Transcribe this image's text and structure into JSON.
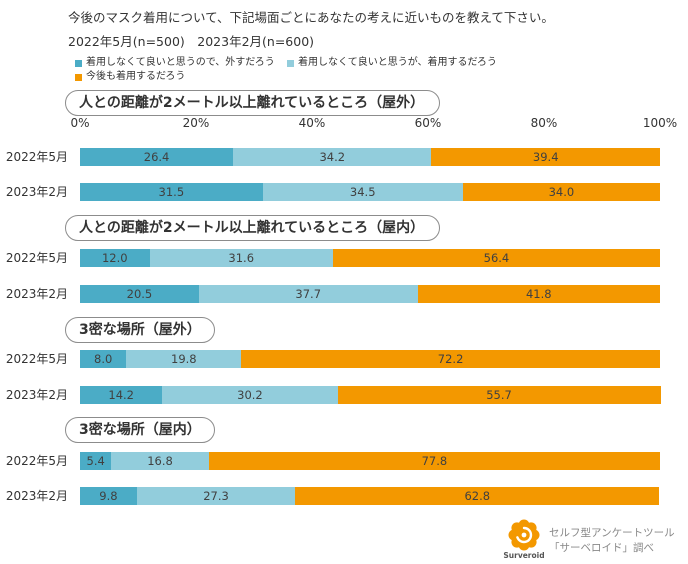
{
  "chart_data": {
    "type": "bar",
    "orientation": "horizontal",
    "stacked": true,
    "title": "今後のマスク着用について、下記場面ごとにあなたの考えに近いものを教えて下さい。",
    "subtitle": "2022年5月(n=500)　2023年2月(n=600)",
    "unit": "%",
    "xlim": [
      0,
      100
    ],
    "xticks": [
      0,
      20,
      40,
      60,
      80,
      100
    ],
    "xtick_labels": [
      "0%",
      "20%",
      "40%",
      "60%",
      "80%",
      "100%"
    ],
    "grid": false,
    "legend_position": "top-left",
    "series": [
      {
        "name": "着用しなくて良いと思うので、外すだろう",
        "color": "#4bacc6"
      },
      {
        "name": "着用しなくて良いと思うが、着用するだろう",
        "color": "#92cddc"
      },
      {
        "name": "今後も着用するだろう",
        "color": "#f39800"
      }
    ],
    "groups": [
      {
        "title": "人との距離が2メートル以上離れているところ（屋外）",
        "rows": [
          {
            "label": "2022年5月",
            "values": [
              26.4,
              34.2,
              39.4
            ]
          },
          {
            "label": "2023年2月",
            "values": [
              31.5,
              34.5,
              34.0
            ]
          }
        ]
      },
      {
        "title": "人との距離が2メートル以上離れているところ（屋内）",
        "rows": [
          {
            "label": "2022年5月",
            "values": [
              12.0,
              31.6,
              56.4
            ]
          },
          {
            "label": "2023年2月",
            "values": [
              20.5,
              37.7,
              41.8
            ]
          }
        ]
      },
      {
        "title": "3密な場所（屋外）",
        "rows": [
          {
            "label": "2022年5月",
            "values": [
              8.0,
              19.8,
              72.2
            ]
          },
          {
            "label": "2023年2月",
            "values": [
              14.2,
              30.2,
              55.7
            ]
          }
        ]
      },
      {
        "title": "3密な場所（屋内）",
        "rows": [
          {
            "label": "2022年5月",
            "values": [
              5.4,
              16.8,
              77.8
            ]
          },
          {
            "label": "2023年2月",
            "values": [
              9.8,
              27.3,
              62.8
            ]
          }
        ]
      }
    ]
  },
  "footer": {
    "logo_icon": "surveroid-logo-icon",
    "logo_color": "#f39800",
    "logo_text": "Surveroid",
    "credit_line1": "セルフ型アンケートツール",
    "credit_line2": "「サーベロイド」調べ"
  }
}
